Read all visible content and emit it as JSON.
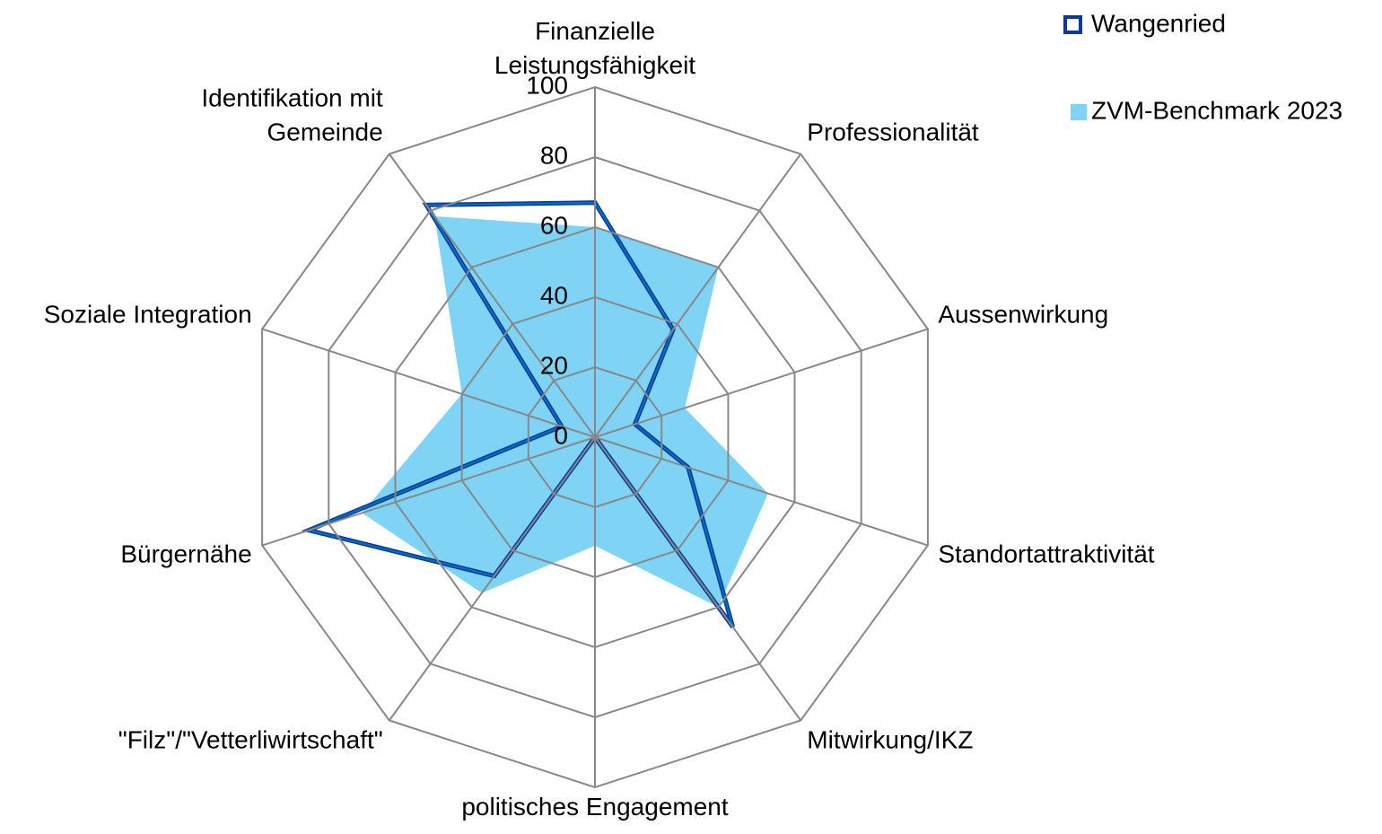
{
  "chart_data": {
    "type": "radar",
    "categories": [
      "Finanzielle\nLeistungsfähigkeit",
      "Professionalität",
      "Aussenwirkung",
      "Standortattraktivität",
      "Mitwirkung/IKZ",
      "politisches Engagement",
      "\"Filz\"/\"Vetterliwirtschaft\"",
      "Bürgernähe",
      "Soziale Integration",
      "Identifikation mit\nGemeinde"
    ],
    "series": [
      {
        "name": "Wangenried",
        "color": "#0b3a9a",
        "values": [
          67,
          38,
          12,
          28,
          67,
          0,
          49,
          86,
          10,
          82
        ]
      },
      {
        "name": "ZVM-Benchmark 2023",
        "color": "#7fd4f5",
        "values": [
          60,
          60,
          27,
          52,
          60,
          31,
          55,
          70,
          40,
          78
        ]
      }
    ],
    "ylim": [
      0,
      100
    ],
    "yticks": [
      0,
      20,
      40,
      60,
      80,
      100
    ],
    "grid": true,
    "legend": "top-right"
  }
}
